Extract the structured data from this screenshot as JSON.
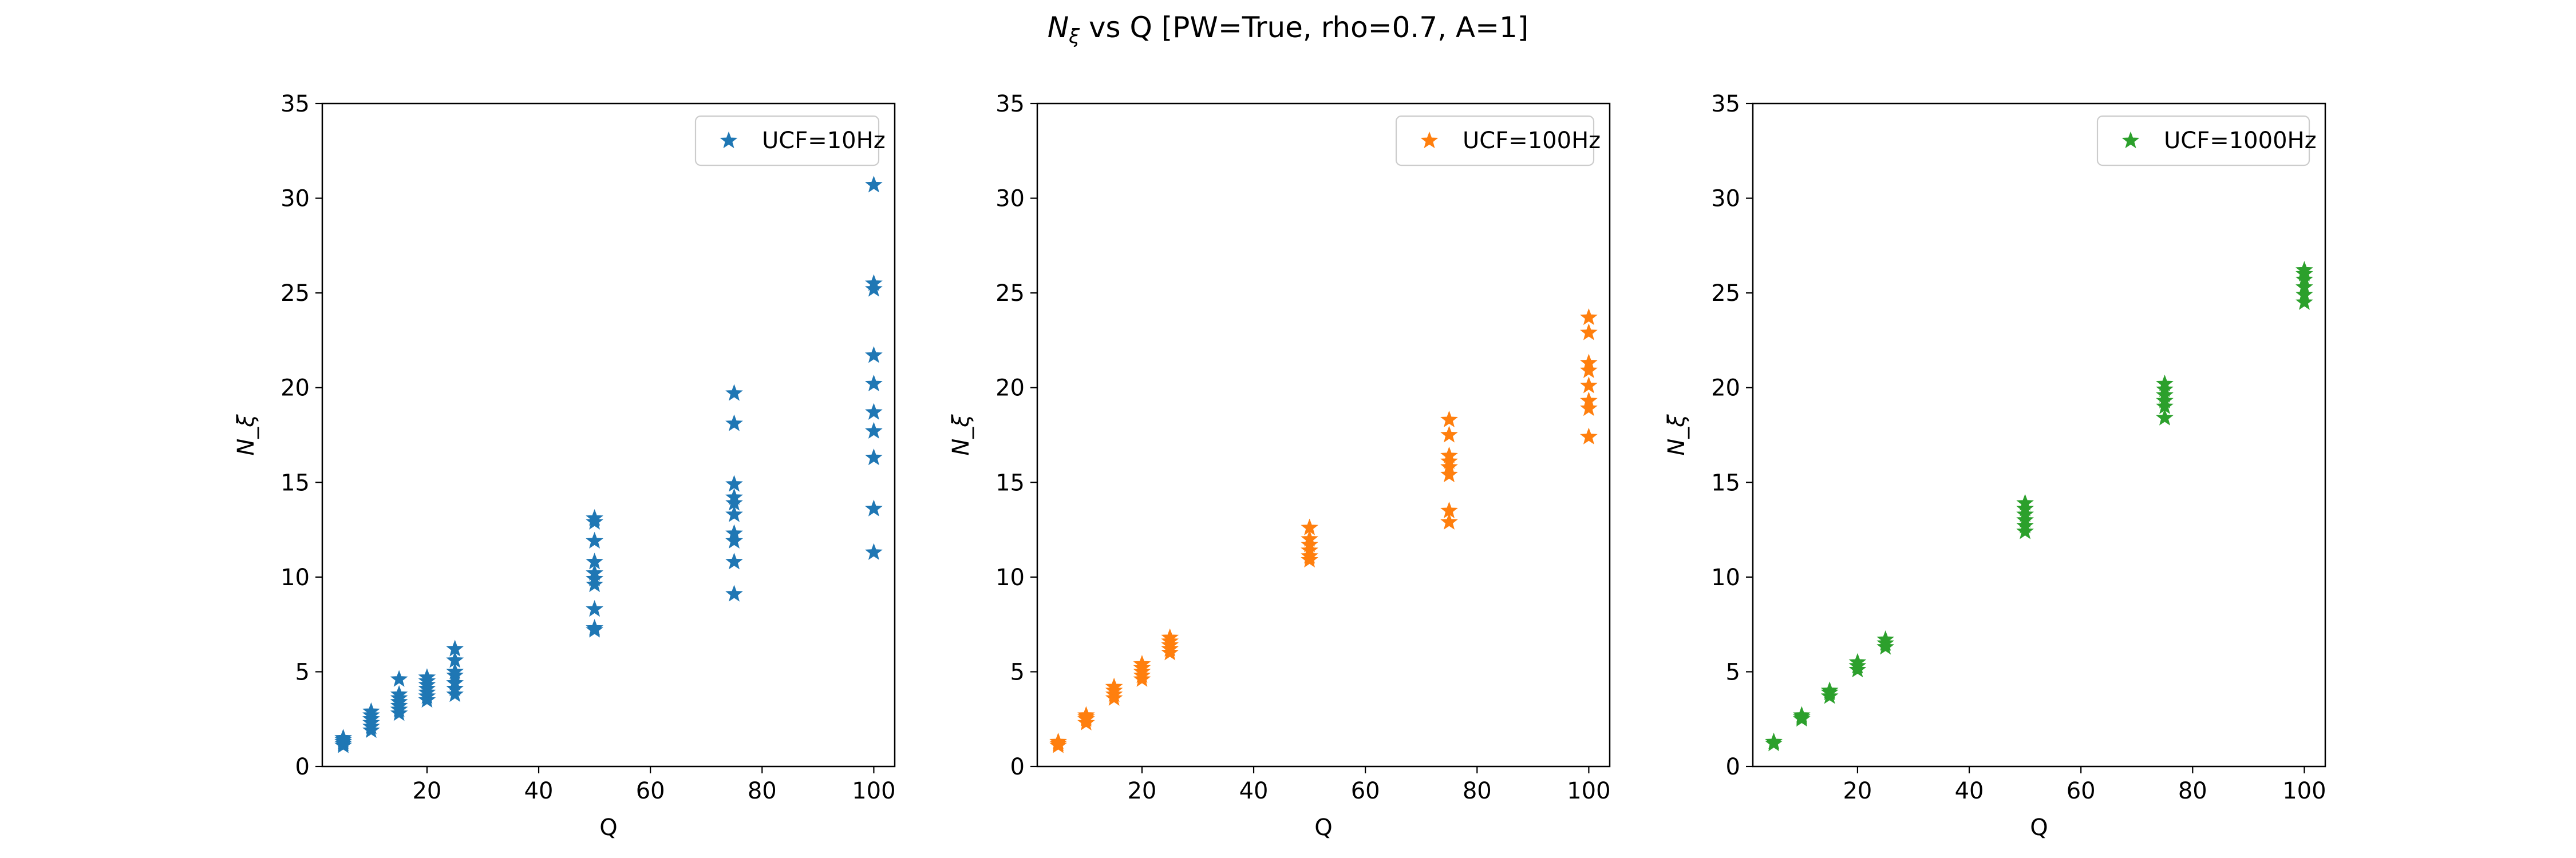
{
  "figure": {
    "suptitle_pre": "N",
    "suptitle_sub": "ξ",
    "suptitle_post": " vs Q [PW=True, rho=0.7, A=1]"
  },
  "chart_data": [
    {
      "type": "scatter",
      "marker": "star",
      "color": "#1f77b4",
      "xlabel": "Q",
      "ylabel": "N_ξ",
      "xlim": [
        1.25,
        103.75
      ],
      "ylim": [
        0,
        35
      ],
      "xticks": [
        20,
        40,
        60,
        80,
        100
      ],
      "yticks": [
        0,
        5,
        10,
        15,
        20,
        25,
        30,
        35
      ],
      "grid": false,
      "legend": "top-right",
      "series": [
        {
          "name": "UCF=10Hz",
          "points": [
            {
              "x": 5,
              "y": 1.1
            },
            {
              "x": 5,
              "y": 1.2
            },
            {
              "x": 5,
              "y": 1.3
            },
            {
              "x": 5,
              "y": 1.4
            },
            {
              "x": 5,
              "y": 1.5
            },
            {
              "x": 10,
              "y": 1.9
            },
            {
              "x": 10,
              "y": 2.1
            },
            {
              "x": 10,
              "y": 2.3
            },
            {
              "x": 10,
              "y": 2.5
            },
            {
              "x": 10,
              "y": 2.7
            },
            {
              "x": 10,
              "y": 2.9
            },
            {
              "x": 15,
              "y": 2.8
            },
            {
              "x": 15,
              "y": 3.0
            },
            {
              "x": 15,
              "y": 3.2
            },
            {
              "x": 15,
              "y": 3.4
            },
            {
              "x": 15,
              "y": 3.6
            },
            {
              "x": 15,
              "y": 3.8
            },
            {
              "x": 15,
              "y": 4.6
            },
            {
              "x": 20,
              "y": 3.5
            },
            {
              "x": 20,
              "y": 3.7
            },
            {
              "x": 20,
              "y": 3.9
            },
            {
              "x": 20,
              "y": 4.1
            },
            {
              "x": 20,
              "y": 4.3
            },
            {
              "x": 20,
              "y": 4.5
            },
            {
              "x": 20,
              "y": 4.7
            },
            {
              "x": 25,
              "y": 3.8
            },
            {
              "x": 25,
              "y": 4.1
            },
            {
              "x": 25,
              "y": 4.4
            },
            {
              "x": 25,
              "y": 4.8
            },
            {
              "x": 25,
              "y": 5.0
            },
            {
              "x": 25,
              "y": 5.6
            },
            {
              "x": 25,
              "y": 6.2
            },
            {
              "x": 50,
              "y": 7.2
            },
            {
              "x": 50,
              "y": 7.3
            },
            {
              "x": 50,
              "y": 8.3
            },
            {
              "x": 50,
              "y": 9.6
            },
            {
              "x": 50,
              "y": 9.9
            },
            {
              "x": 50,
              "y": 10.2
            },
            {
              "x": 50,
              "y": 10.8
            },
            {
              "x": 50,
              "y": 11.9
            },
            {
              "x": 50,
              "y": 12.9
            },
            {
              "x": 50,
              "y": 13.1
            },
            {
              "x": 75,
              "y": 9.1
            },
            {
              "x": 75,
              "y": 10.8
            },
            {
              "x": 75,
              "y": 11.9
            },
            {
              "x": 75,
              "y": 12.3
            },
            {
              "x": 75,
              "y": 13.3
            },
            {
              "x": 75,
              "y": 13.9
            },
            {
              "x": 75,
              "y": 14.2
            },
            {
              "x": 75,
              "y": 14.9
            },
            {
              "x": 75,
              "y": 18.1
            },
            {
              "x": 75,
              "y": 19.7
            },
            {
              "x": 100,
              "y": 11.3
            },
            {
              "x": 100,
              "y": 13.6
            },
            {
              "x": 100,
              "y": 16.3
            },
            {
              "x": 100,
              "y": 17.7
            },
            {
              "x": 100,
              "y": 18.7
            },
            {
              "x": 100,
              "y": 20.2
            },
            {
              "x": 100,
              "y": 21.7
            },
            {
              "x": 100,
              "y": 25.2
            },
            {
              "x": 100,
              "y": 25.5
            },
            {
              "x": 100,
              "y": 30.7
            }
          ]
        }
      ]
    },
    {
      "type": "scatter",
      "marker": "star",
      "color": "#ff7f0e",
      "xlabel": "Q",
      "ylabel": "N_ξ",
      "xlim": [
        1.25,
        103.75
      ],
      "ylim": [
        0,
        35
      ],
      "xticks": [
        20,
        40,
        60,
        80,
        100
      ],
      "yticks": [
        0,
        5,
        10,
        15,
        20,
        25,
        30,
        35
      ],
      "grid": false,
      "legend": "top-right",
      "series": [
        {
          "name": "UCF=100Hz",
          "points": [
            {
              "x": 5,
              "y": 1.1
            },
            {
              "x": 5,
              "y": 1.2
            },
            {
              "x": 5,
              "y": 1.3
            },
            {
              "x": 10,
              "y": 2.3
            },
            {
              "x": 10,
              "y": 2.5
            },
            {
              "x": 10,
              "y": 2.6
            },
            {
              "x": 10,
              "y": 2.7
            },
            {
              "x": 15,
              "y": 3.6
            },
            {
              "x": 15,
              "y": 3.8
            },
            {
              "x": 15,
              "y": 4.0
            },
            {
              "x": 15,
              "y": 4.2
            },
            {
              "x": 20,
              "y": 4.6
            },
            {
              "x": 20,
              "y": 4.8
            },
            {
              "x": 20,
              "y": 5.0
            },
            {
              "x": 20,
              "y": 5.2
            },
            {
              "x": 20,
              "y": 5.4
            },
            {
              "x": 25,
              "y": 6.0
            },
            {
              "x": 25,
              "y": 6.2
            },
            {
              "x": 25,
              "y": 6.4
            },
            {
              "x": 25,
              "y": 6.6
            },
            {
              "x": 25,
              "y": 6.8
            },
            {
              "x": 50,
              "y": 10.9
            },
            {
              "x": 50,
              "y": 11.1
            },
            {
              "x": 50,
              "y": 11.4
            },
            {
              "x": 50,
              "y": 11.7
            },
            {
              "x": 50,
              "y": 12.0
            },
            {
              "x": 50,
              "y": 12.6
            },
            {
              "x": 75,
              "y": 12.9
            },
            {
              "x": 75,
              "y": 13.5
            },
            {
              "x": 75,
              "y": 15.4
            },
            {
              "x": 75,
              "y": 15.8
            },
            {
              "x": 75,
              "y": 16.1
            },
            {
              "x": 75,
              "y": 16.4
            },
            {
              "x": 75,
              "y": 17.5
            },
            {
              "x": 75,
              "y": 18.3
            },
            {
              "x": 100,
              "y": 17.4
            },
            {
              "x": 100,
              "y": 18.9
            },
            {
              "x": 100,
              "y": 19.3
            },
            {
              "x": 100,
              "y": 20.1
            },
            {
              "x": 100,
              "y": 20.9
            },
            {
              "x": 100,
              "y": 21.3
            },
            {
              "x": 100,
              "y": 22.9
            },
            {
              "x": 100,
              "y": 23.7
            }
          ]
        }
      ]
    },
    {
      "type": "scatter",
      "marker": "star",
      "color": "#2ca02c",
      "xlabel": "Q",
      "ylabel": "N_ξ",
      "xlim": [
        1.25,
        103.75
      ],
      "ylim": [
        0,
        35
      ],
      "xticks": [
        20,
        40,
        60,
        80,
        100
      ],
      "yticks": [
        0,
        5,
        10,
        15,
        20,
        25,
        30,
        35
      ],
      "grid": false,
      "legend": "top-right",
      "series": [
        {
          "name": "UCF=1000Hz",
          "points": [
            {
              "x": 5,
              "y": 1.2
            },
            {
              "x": 5,
              "y": 1.3
            },
            {
              "x": 10,
              "y": 2.5
            },
            {
              "x": 10,
              "y": 2.6
            },
            {
              "x": 10,
              "y": 2.7
            },
            {
              "x": 15,
              "y": 3.7
            },
            {
              "x": 15,
              "y": 3.9
            },
            {
              "x": 15,
              "y": 4.0
            },
            {
              "x": 20,
              "y": 5.1
            },
            {
              "x": 20,
              "y": 5.3
            },
            {
              "x": 20,
              "y": 5.5
            },
            {
              "x": 25,
              "y": 6.3
            },
            {
              "x": 25,
              "y": 6.5
            },
            {
              "x": 25,
              "y": 6.7
            },
            {
              "x": 50,
              "y": 12.4
            },
            {
              "x": 50,
              "y": 12.7
            },
            {
              "x": 50,
              "y": 13.0
            },
            {
              "x": 50,
              "y": 13.3
            },
            {
              "x": 50,
              "y": 13.6
            },
            {
              "x": 50,
              "y": 13.9
            },
            {
              "x": 75,
              "y": 18.4
            },
            {
              "x": 75,
              "y": 19.0
            },
            {
              "x": 75,
              "y": 19.3
            },
            {
              "x": 75,
              "y": 19.6
            },
            {
              "x": 75,
              "y": 19.9
            },
            {
              "x": 75,
              "y": 20.2
            },
            {
              "x": 100,
              "y": 24.5
            },
            {
              "x": 100,
              "y": 24.9
            },
            {
              "x": 100,
              "y": 25.3
            },
            {
              "x": 100,
              "y": 25.7
            },
            {
              "x": 100,
              "y": 26.0
            },
            {
              "x": 100,
              "y": 26.2
            }
          ]
        }
      ]
    }
  ]
}
